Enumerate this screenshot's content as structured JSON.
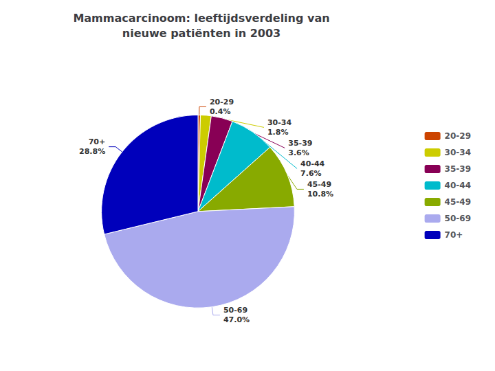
{
  "chart_data": {
    "type": "pie",
    "title": "Mammacarcinoom: leeftijdsverdeling van\nnieuwe patiënten in 2003",
    "categories": [
      "20-29",
      "30-34",
      "35-39",
      "40-44",
      "45-49",
      "50-69",
      "70+"
    ],
    "values": [
      0.4,
      1.8,
      3.6,
      7.6,
      10.8,
      47.0,
      28.8
    ],
    "value_labels": [
      "0.4%",
      "1.8%",
      "3.6%",
      "7.6%",
      "10.8%",
      "47.0%",
      "28.8%"
    ],
    "colors": [
      "#CC4400",
      "#CCCC00",
      "#880055",
      "#00BBCC",
      "#88AA00",
      "#AAAAEE",
      "#0000BB"
    ],
    "data_labels": true,
    "legend": "right"
  }
}
